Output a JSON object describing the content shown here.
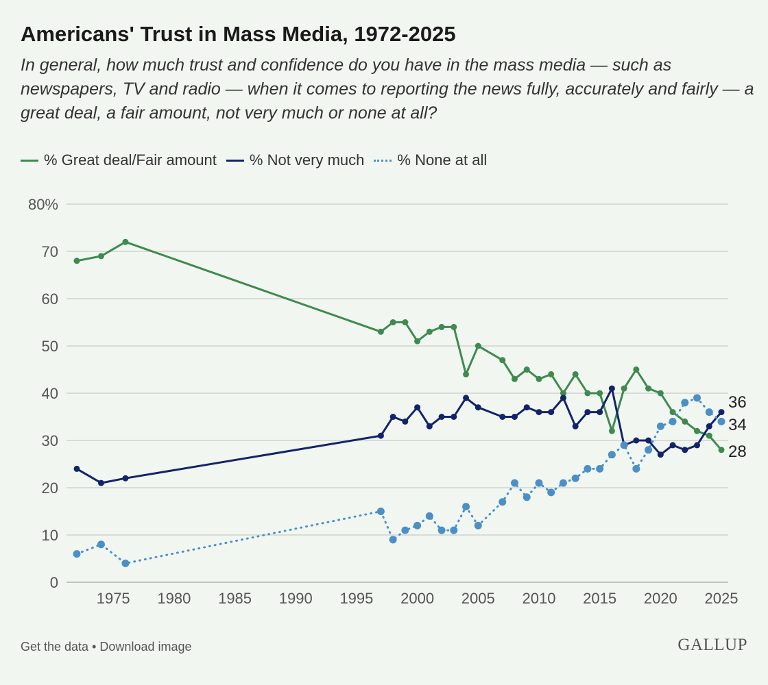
{
  "footer": {
    "get_data": "Get the data",
    "sep": "•",
    "download": "Download image"
  },
  "logo": "GALLUP",
  "colors": {
    "trust": "#3e8a50",
    "not_very": "#13236b",
    "none": "#4b8fc6",
    "grid": "#d8dcd7"
  },
  "chart_data": {
    "type": "line",
    "title": "Americans' Trust in Mass Media, 1972-2025",
    "subtitle": "In general, how much trust and confidence do you have in the mass media — such as newspapers, TV and radio — when it comes to reporting the news fully, accurately and fairly — a great deal, a fair amount, not very much or none at all?",
    "xlabel": "",
    "ylabel": "",
    "ylim": [
      0,
      80
    ],
    "xlim": [
      1972,
      2025
    ],
    "yticks": [
      "0",
      "10",
      "20",
      "30",
      "40",
      "50",
      "60",
      "70",
      "80%"
    ],
    "xticks": [
      "1975",
      "1980",
      "1985",
      "1990",
      "1995",
      "2000",
      "2005",
      "2010",
      "2015",
      "2020",
      "2025"
    ],
    "grid": true,
    "legend_position": "top-left",
    "x": [
      1972,
      1974,
      1976,
      1997,
      1998,
      1999,
      2000,
      2001,
      2002,
      2003,
      2004,
      2005,
      2007,
      2008,
      2009,
      2010,
      2011,
      2012,
      2013,
      2014,
      2015,
      2016,
      2017,
      2018,
      2019,
      2020,
      2021,
      2022,
      2023,
      2024,
      2025
    ],
    "series": [
      {
        "name": "% Great deal/Fair amount",
        "style": "solid",
        "end_label": "28",
        "values": [
          68,
          69,
          72,
          53,
          55,
          55,
          51,
          53,
          54,
          54,
          44,
          50,
          47,
          43,
          45,
          43,
          44,
          40,
          44,
          40,
          40,
          32,
          41,
          45,
          41,
          40,
          36,
          34,
          32,
          31,
          28
        ]
      },
      {
        "name": "% Not very much",
        "style": "solid",
        "end_label": "36",
        "values": [
          24,
          21,
          22,
          31,
          35,
          34,
          37,
          33,
          35,
          35,
          39,
          37,
          35,
          35,
          37,
          36,
          36,
          39,
          33,
          36,
          36,
          41,
          29,
          30,
          30,
          27,
          29,
          28,
          29,
          33,
          36
        ]
      },
      {
        "name": "% None at all",
        "style": "dotted",
        "end_label": "34",
        "values": [
          6,
          8,
          4,
          15,
          9,
          11,
          12,
          14,
          11,
          11,
          16,
          12,
          17,
          21,
          18,
          21,
          19,
          21,
          22,
          24,
          24,
          27,
          29,
          24,
          28,
          33,
          34,
          38,
          39,
          36,
          34
        ]
      }
    ]
  }
}
